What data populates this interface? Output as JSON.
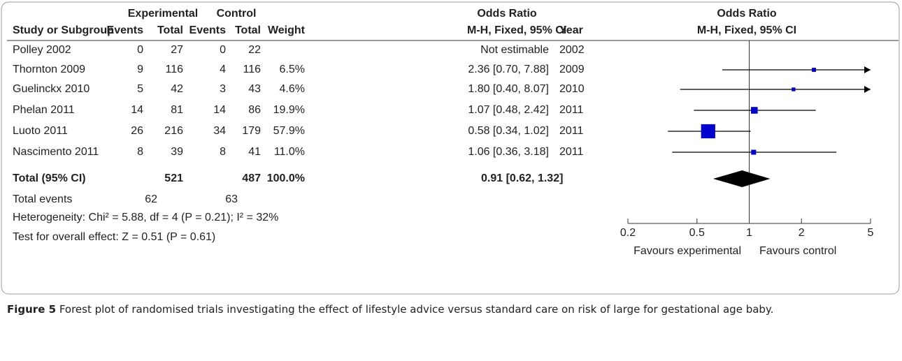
{
  "table": {
    "groups": [
      {
        "key": "exp",
        "label": "Experimental"
      },
      {
        "key": "ctl",
        "label": "Control"
      },
      {
        "key": "or",
        "label": "Odds Ratio"
      }
    ],
    "columns": {
      "study": "Study or Subgroup",
      "exp_events": "Events",
      "exp_total": "Total",
      "ctl_events": "Events",
      "ctl_total": "Total",
      "weight": "Weight",
      "or_ci": "M-H, Fixed, 95% CI",
      "year": "Year"
    },
    "rows": [
      {
        "study": "Polley 2002",
        "exp_events": 0,
        "exp_total": 27,
        "ctl_events": 0,
        "ctl_total": 22,
        "or_ci": "Not estimable",
        "year": 2002
      },
      {
        "study": "Thornton 2009",
        "exp_events": 9,
        "exp_total": 116,
        "ctl_events": 4,
        "ctl_total": 116,
        "weight": "6.5%",
        "or_ci": "2.36 [0.70, 7.88]",
        "year": 2009
      },
      {
        "study": "Guelinckx 2010",
        "exp_events": 5,
        "exp_total": 42,
        "ctl_events": 3,
        "ctl_total": 43,
        "weight": "4.6%",
        "or_ci": "1.80 [0.40, 8.07]",
        "year": 2010
      },
      {
        "study": "Phelan 2011",
        "exp_events": 14,
        "exp_total": 81,
        "ctl_events": 14,
        "ctl_total": 86,
        "weight": "19.9%",
        "or_ci": "1.07 [0.48, 2.42]",
        "year": 2011
      },
      {
        "study": "Luoto 2011",
        "exp_events": 26,
        "exp_total": 216,
        "ctl_events": 34,
        "ctl_total": 179,
        "weight": "57.9%",
        "or_ci": "0.58 [0.34, 1.02]",
        "year": 2011
      },
      {
        "study": "Nascimento 2011",
        "exp_events": 8,
        "exp_total": 39,
        "ctl_events": 8,
        "ctl_total": 41,
        "weight": "11.0%",
        "or_ci": "1.06 [0.36, 3.18]",
        "year": 2011
      }
    ],
    "total": {
      "study": "Total (95% CI)",
      "exp_total": 521,
      "ctl_total": 487,
      "weight": "100.0%",
      "or_ci": "0.91 [0.62, 1.32]"
    },
    "total_events": {
      "study": "Total events",
      "exp_events": 62,
      "ctl_events": 63
    },
    "heterogeneity": "Heterogeneity: Chi² = 5.88, df = 4 (P = 0.21); I² = 32%",
    "overall_effect": "Test for overall effect: Z = 0.51 (P = 0.61)"
  },
  "chart_data": {
    "type": "forest",
    "title": "Odds Ratio",
    "subtitle": "M-H, Fixed, 95% CI",
    "values": [
      null,
      2.36,
      1.8,
      1.07,
      0.58,
      1.06
    ],
    "lower": [
      null,
      0.7,
      0.4,
      0.48,
      0.34,
      0.36
    ],
    "upper": [
      null,
      7.88,
      8.07,
      2.42,
      1.02,
      3.18
    ],
    "weights": [
      null,
      6.5,
      4.6,
      19.9,
      57.9,
      11.0
    ],
    "total": {
      "value": 0.91,
      "lower": 0.62,
      "upper": 1.32
    },
    "color": "#0000cc",
    "xlim": [
      0.2,
      5
    ],
    "xticks": [
      0.2,
      0.5,
      1,
      2,
      5
    ],
    "log_scale": true,
    "favours_left": "Favours experimental",
    "favours_right": "Favours control"
  },
  "caption": {
    "label": "Figure 5",
    "text": " Forest plot of randomised trials investigating the effect of lifestyle advice versus standard care on risk of large for gestational age baby."
  }
}
